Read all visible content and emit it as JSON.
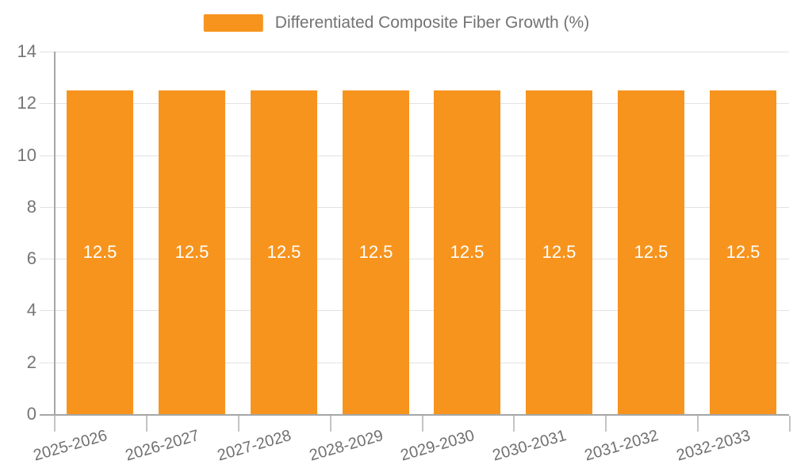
{
  "legend": {
    "label": "Differentiated Composite Fiber Growth (%)",
    "swatch_color": "#F7941E"
  },
  "chart_data": {
    "type": "bar",
    "title": "Differentiated Composite Fiber Growth (%)",
    "categories": [
      "2025-2026",
      "2026-2027",
      "2027-2028",
      "2028-2029",
      "2029-2030",
      "2030-2031",
      "2031-2032",
      "2032-2033"
    ],
    "values": [
      12.5,
      12.5,
      12.5,
      12.5,
      12.5,
      12.5,
      12.5,
      12.5
    ],
    "value_labels": [
      "12.5",
      "12.5",
      "12.5",
      "12.5",
      "12.5",
      "12.5",
      "12.5",
      "12.5"
    ],
    "xlabel": "",
    "ylabel": "",
    "ylim": [
      0,
      14
    ],
    "yticks": [
      0,
      2,
      4,
      6,
      8,
      10,
      12,
      14
    ],
    "grid": true,
    "legend_position": "top",
    "bar_color": "#F7941E",
    "bar_label_color": "#FFFFFF",
    "axis_text_color": "#757575",
    "gridline_color": "#E2E2E2",
    "axis_line_color": "#A6A6A6"
  }
}
